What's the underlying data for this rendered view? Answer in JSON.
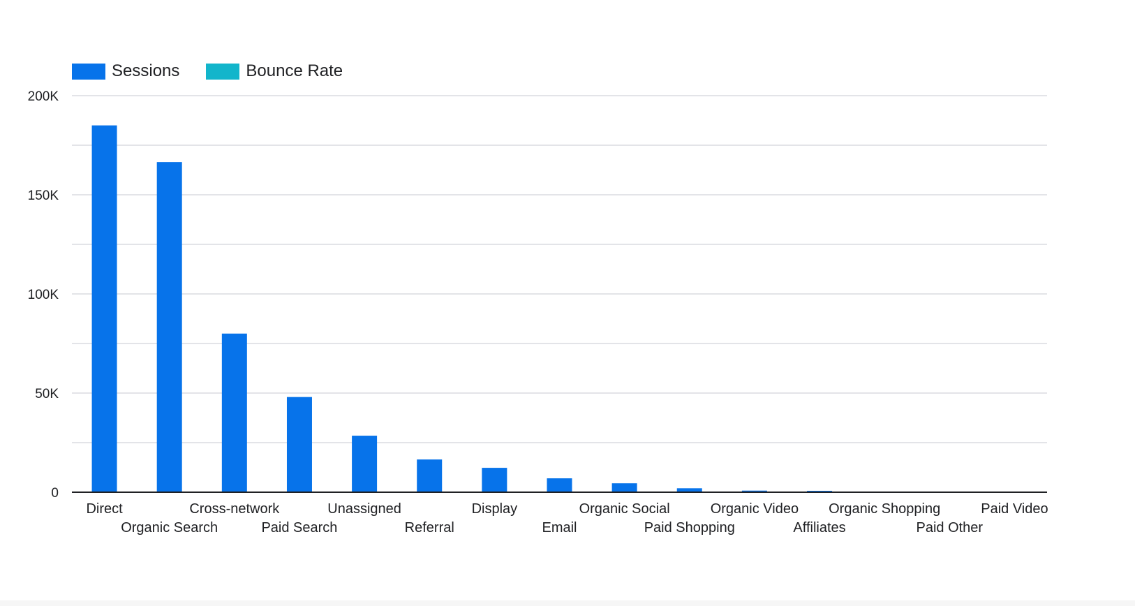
{
  "colors": {
    "sessions": "#0773ea",
    "bounce_rate": "#12b5cb",
    "grid": "#dadce0",
    "axis": "#202124",
    "text": "#202124"
  },
  "legend": [
    {
      "label": "Sessions",
      "color": "#0773ea"
    },
    {
      "label": "Bounce Rate",
      "color": "#12b5cb"
    }
  ],
  "chart_data": {
    "type": "bar",
    "title": "",
    "xlabel": "",
    "ylabel": "",
    "categories": [
      "Direct",
      "Organic Search",
      "Cross-network",
      "Paid Search",
      "Unassigned",
      "Referral",
      "Display",
      "Email",
      "Organic Social",
      "Paid Shopping",
      "Organic Video",
      "Affiliates",
      "Organic Shopping",
      "Paid Other",
      "Paid Video"
    ],
    "series": [
      {
        "name": "Sessions",
        "values": [
          185000,
          166500,
          80000,
          48000,
          28500,
          16500,
          12300,
          7000,
          4500,
          2000,
          800,
          700,
          300,
          100,
          50
        ]
      },
      {
        "name": "Bounce Rate",
        "values": [
          0,
          0,
          0,
          0,
          0,
          0,
          0,
          0,
          0,
          0,
          0,
          0,
          0,
          0,
          0
        ]
      }
    ],
    "ylim": [
      0,
      200000
    ],
    "yticks": [
      0,
      50000,
      100000,
      150000,
      200000
    ],
    "ytick_labels": [
      "0",
      "50K",
      "100K",
      "150K",
      "200K"
    ],
    "minor_gridlines": [
      25000,
      75000,
      125000,
      175000
    ],
    "grid": true,
    "legend_position": "top-left"
  }
}
